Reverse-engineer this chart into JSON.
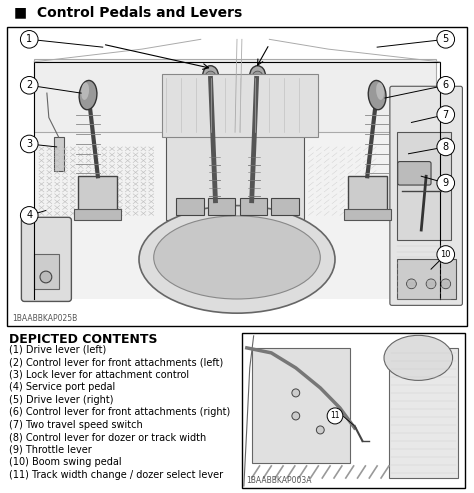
{
  "title": "Control Pedals and Levers",
  "title_marker": "■",
  "bg_color": "#ffffff",
  "text_color": "#000000",
  "depicted_contents_title": "DEPICTED CONTENTS",
  "items": [
    "(1) Drive lever (left)",
    "(2) Control lever for front attachments (left)",
    "(3) Lock lever for attachment control",
    "(4) Service port pedal",
    "(5) Drive lever (right)",
    "(6) Control lever for front attachments (right)",
    "(7) Two travel speed switch",
    "(8) Control lever for dozer or track width",
    "(9) Throttle lever",
    "(10) Boom swing pedal",
    "(11) Track width change / dozer select lever"
  ],
  "label_code_main": "1BAABBKAP025B",
  "label_code_sub": "1BAABBKAP003A",
  "fig_width": 4.74,
  "fig_height": 4.93,
  "dpi": 100,
  "gray_light": "#e8e8e8",
  "gray_mid": "#cccccc",
  "gray_dark": "#999999",
  "gray_joystick": "#b0b0b0",
  "gray_grip": "#888888"
}
